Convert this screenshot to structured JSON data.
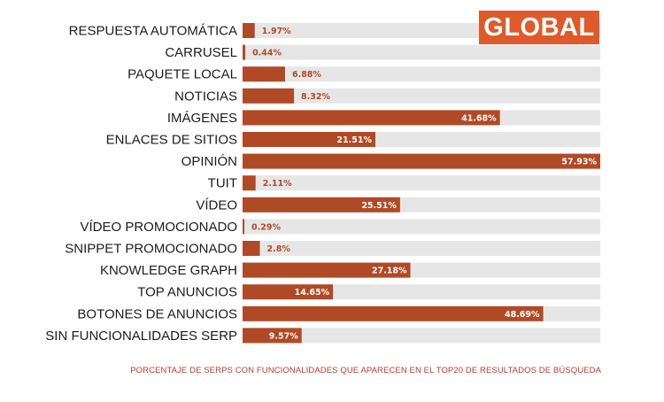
{
  "badge": "GLOBAL",
  "footnote": "PORCENTAJE DE SERPS CON FUNCIONALIDADES QUE APARECEN EN EL TOP20 DE RESULTADOS DE BÚSQUEDA",
  "colors": {
    "bar": "#b04a26",
    "track": "#e6e6e6",
    "badge": "#df5a2b",
    "label_on_bar": "#ffffff",
    "label_off_bar": "#b04a26"
  },
  "chart_data": {
    "type": "bar",
    "orientation": "horizontal",
    "categories": [
      "RESPUESTA AUTOMÁTICA",
      "CARRUSEL",
      "PAQUETE LOCAL",
      "NOTICIAS",
      "IMÁGENES",
      "ENLACES DE SITIOS",
      "OPINIÓN",
      "TUIT",
      "VÍDEO",
      "VÍDEO PROMOCIONADO",
      "SNIPPET PROMOCIONADO",
      "KNOWLEDGE GRAPH",
      "TOP ANUNCIOS",
      "BOTONES DE ANUNCIOS",
      "SIN FUNCIONALIDADES SERP"
    ],
    "values": [
      1.97,
      0.44,
      6.88,
      8.32,
      41.68,
      21.51,
      57.93,
      2.11,
      25.51,
      0.29,
      2.8,
      27.18,
      14.65,
      48.69,
      9.57
    ],
    "value_labels": [
      "1.97%",
      "0.44%",
      "6.88%",
      "8.32%",
      "41.68%",
      "21.51%",
      "57.93%",
      "2.11%",
      "25.51%",
      "0.29%",
      "2.8%",
      "27.18%",
      "14.65%",
      "48.69%",
      "9.57%"
    ],
    "xlim": [
      0,
      57.93
    ],
    "grid": false,
    "legend": "none"
  }
}
